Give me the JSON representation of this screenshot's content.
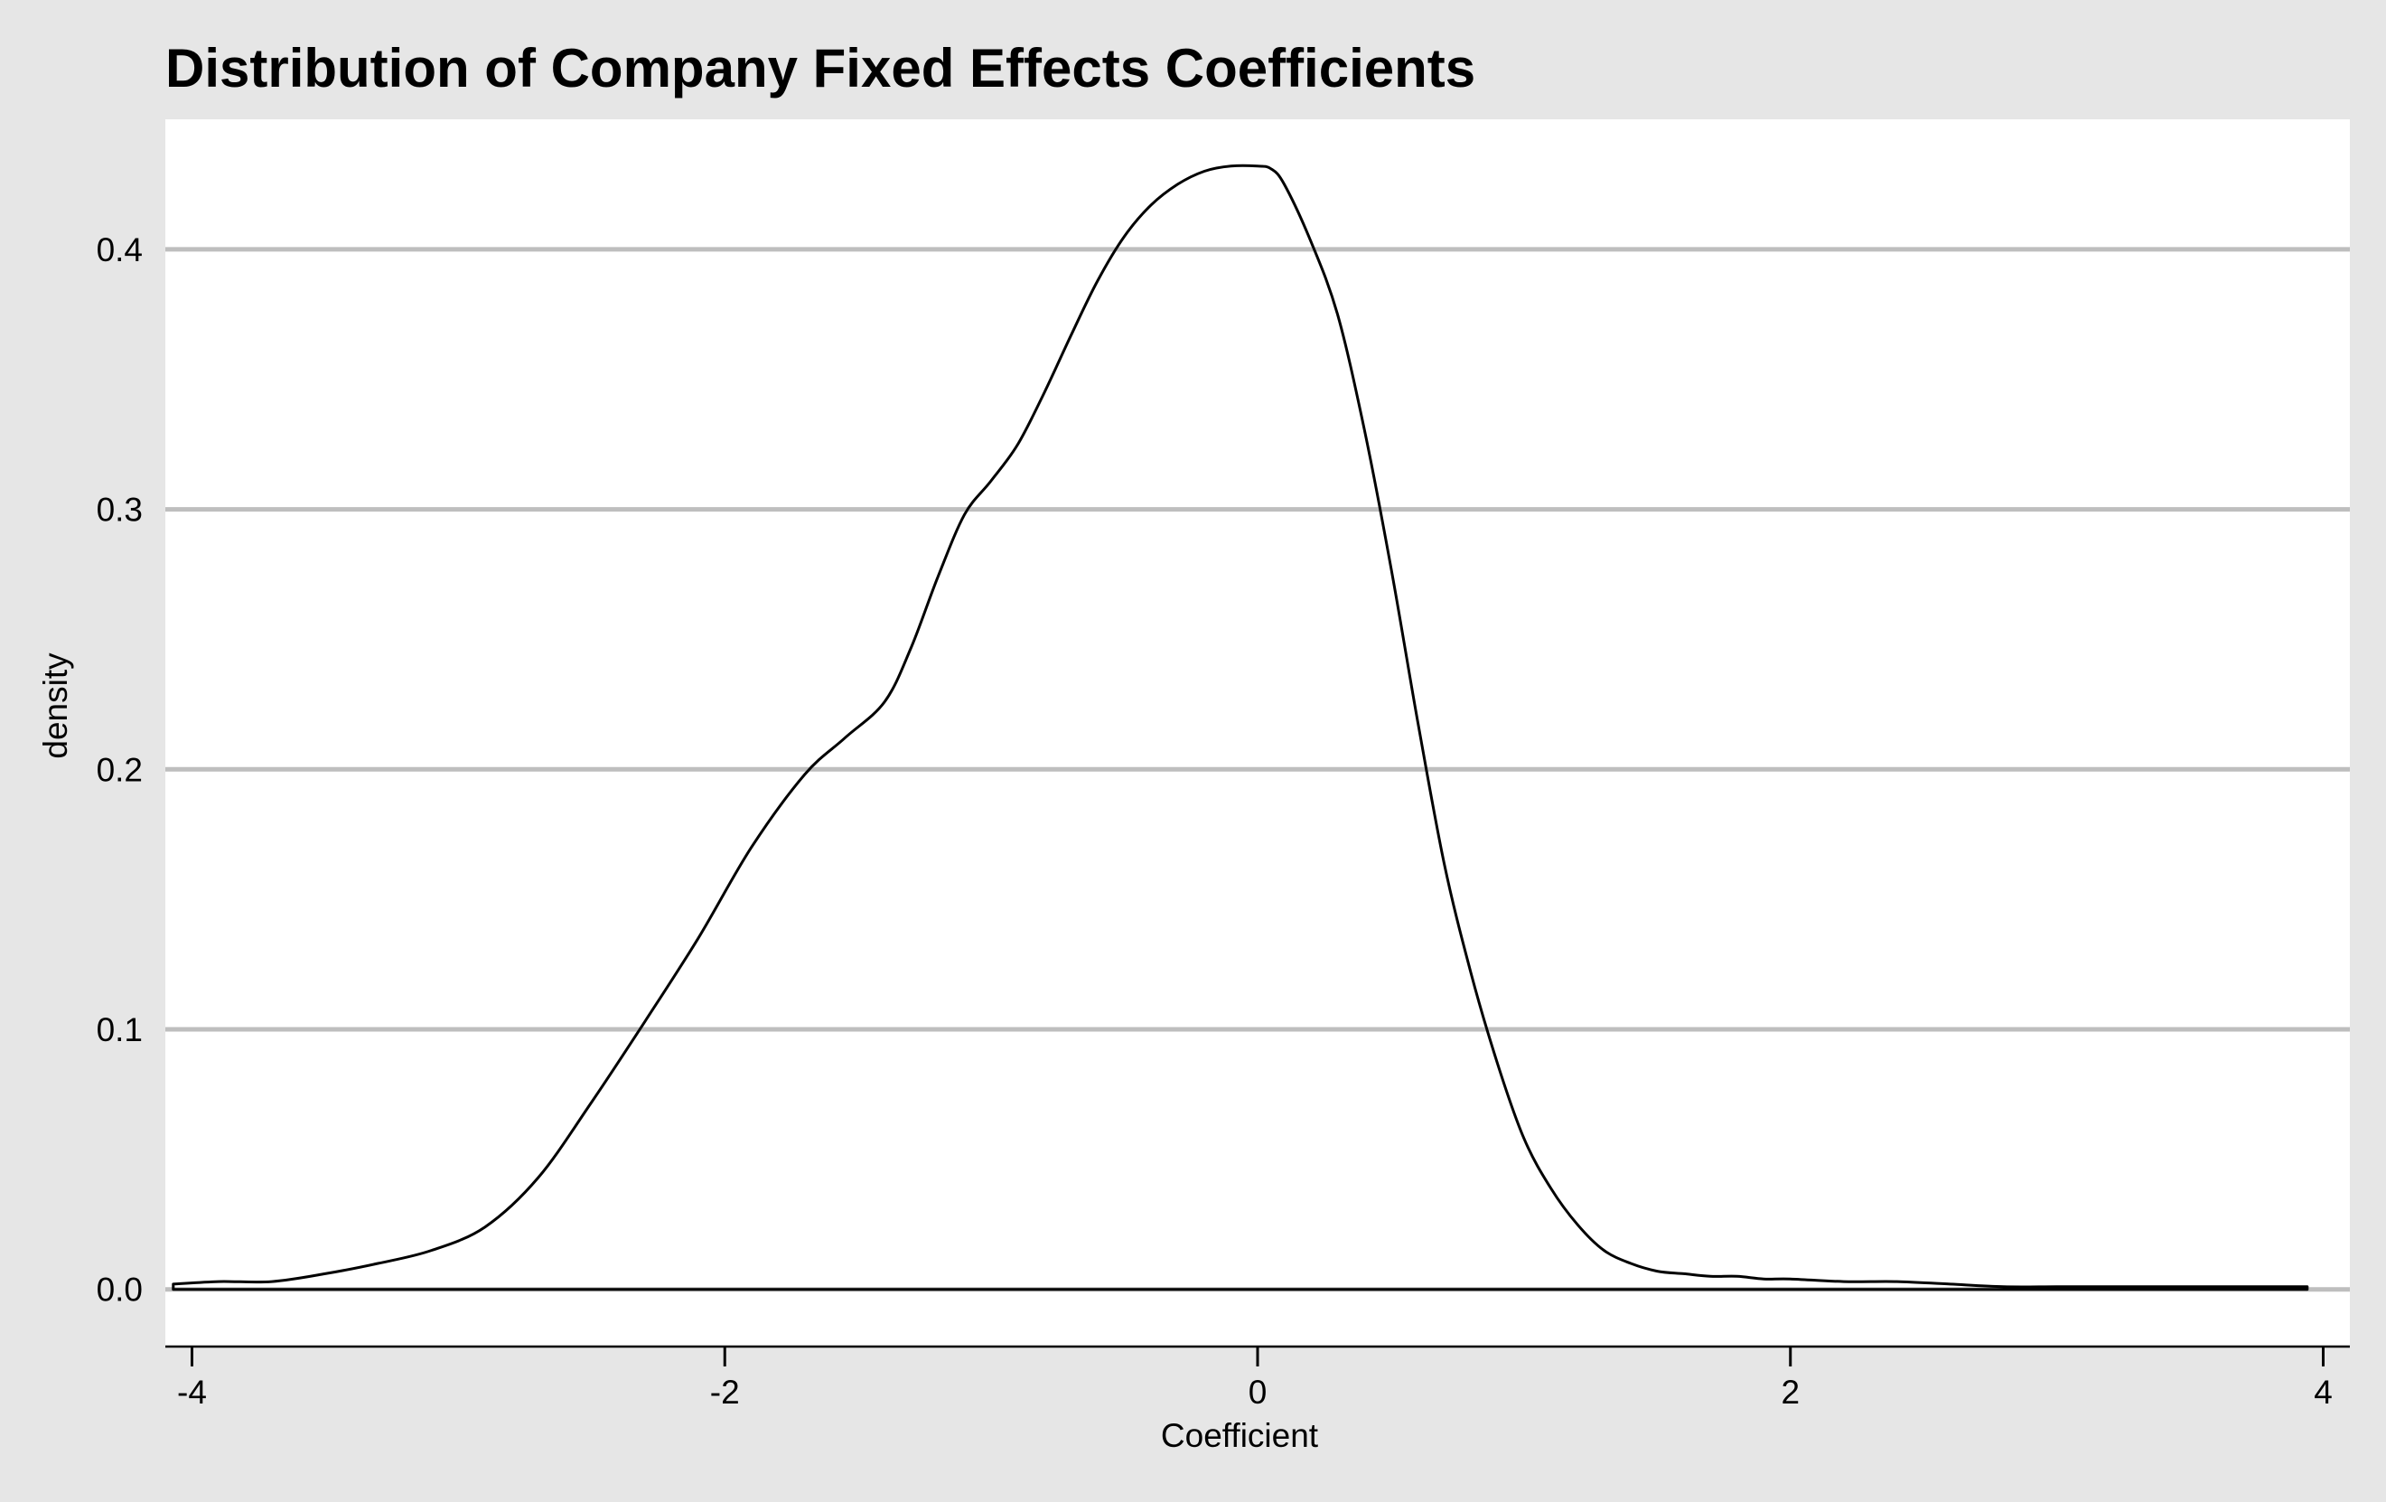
{
  "chart_data": {
    "type": "area",
    "title": "Distribution of Company Fixed Effects Coefficients",
    "xlabel": "Coefficient",
    "ylabel": "density",
    "xlim": [
      -4.1,
      4.1
    ],
    "ylim": [
      -0.022,
      0.45
    ],
    "xticks": [
      -4,
      -2,
      0,
      2,
      4
    ],
    "xtick_labels": [
      "-4",
      "-2",
      "0",
      "2",
      "4"
    ],
    "yticks": [
      0.0,
      0.1,
      0.2,
      0.3,
      0.4
    ],
    "ytick_labels": [
      "0.0",
      "0.1",
      "0.2",
      "0.3",
      "0.4"
    ],
    "grid": "horizontal",
    "legend": "none",
    "colors": {
      "background": "#e6e6e6",
      "panel": "#ffffff",
      "grid": "#bebebe",
      "line": "#000000"
    },
    "series": [
      {
        "x": [
          -4.07,
          -3.9,
          -3.7,
          -3.5,
          -3.3,
          -3.1,
          -2.9,
          -2.7,
          -2.5,
          -2.3,
          -2.1,
          -1.9,
          -1.7,
          -1.55,
          -1.4,
          -1.3,
          -1.2,
          -1.1,
          -1.0,
          -0.9,
          -0.8,
          -0.7,
          -0.6,
          -0.5,
          -0.4,
          -0.3,
          -0.2,
          -0.1,
          0.0,
          0.05,
          0.1,
          0.2,
          0.3,
          0.4,
          0.5,
          0.6,
          0.7,
          0.8,
          0.9,
          1.0,
          1.1,
          1.2,
          1.3,
          1.4,
          1.5,
          1.6,
          1.7,
          1.8,
          1.9,
          2.0,
          2.2,
          2.4,
          2.6,
          2.8,
          3.0,
          3.2,
          3.4,
          3.6,
          3.8,
          3.94
        ],
        "y": [
          0.002,
          0.003,
          0.003,
          0.006,
          0.01,
          0.015,
          0.024,
          0.043,
          0.072,
          0.103,
          0.135,
          0.17,
          0.198,
          0.212,
          0.226,
          0.247,
          0.274,
          0.298,
          0.311,
          0.325,
          0.345,
          0.367,
          0.388,
          0.405,
          0.417,
          0.425,
          0.43,
          0.432,
          0.432,
          0.431,
          0.425,
          0.403,
          0.375,
          0.331,
          0.278,
          0.219,
          0.164,
          0.122,
          0.087,
          0.058,
          0.039,
          0.025,
          0.015,
          0.01,
          0.007,
          0.006,
          0.005,
          0.005,
          0.004,
          0.004,
          0.003,
          0.003,
          0.002,
          0.001,
          0.001,
          0.001,
          0.001,
          0.001,
          0.001,
          0.001
        ]
      }
    ]
  }
}
